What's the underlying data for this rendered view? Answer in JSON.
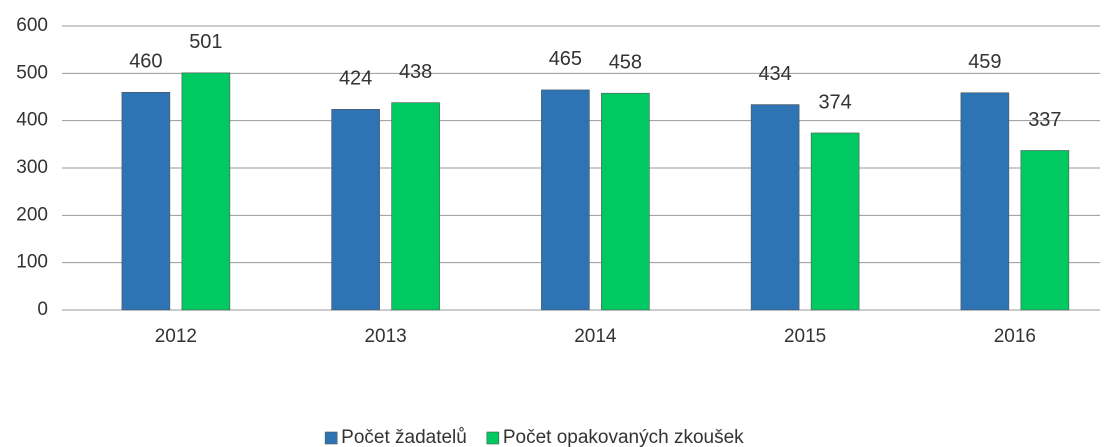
{
  "chart_data": {
    "type": "bar",
    "categories": [
      "2012",
      "2013",
      "2014",
      "2015",
      "2016"
    ],
    "series": [
      {
        "name": "Počet žadatelů",
        "color": "#2e74b5",
        "values": [
          460,
          424,
          465,
          434,
          459
        ]
      },
      {
        "name": "Počet opakovaných zkoušek",
        "color": "#00c961",
        "values": [
          501,
          438,
          458,
          374,
          337
        ]
      }
    ],
    "ylim": [
      0,
      600
    ],
    "yticks": [
      0,
      100,
      200,
      300,
      400,
      500,
      600
    ],
    "grid": true,
    "legend": "bottom"
  }
}
